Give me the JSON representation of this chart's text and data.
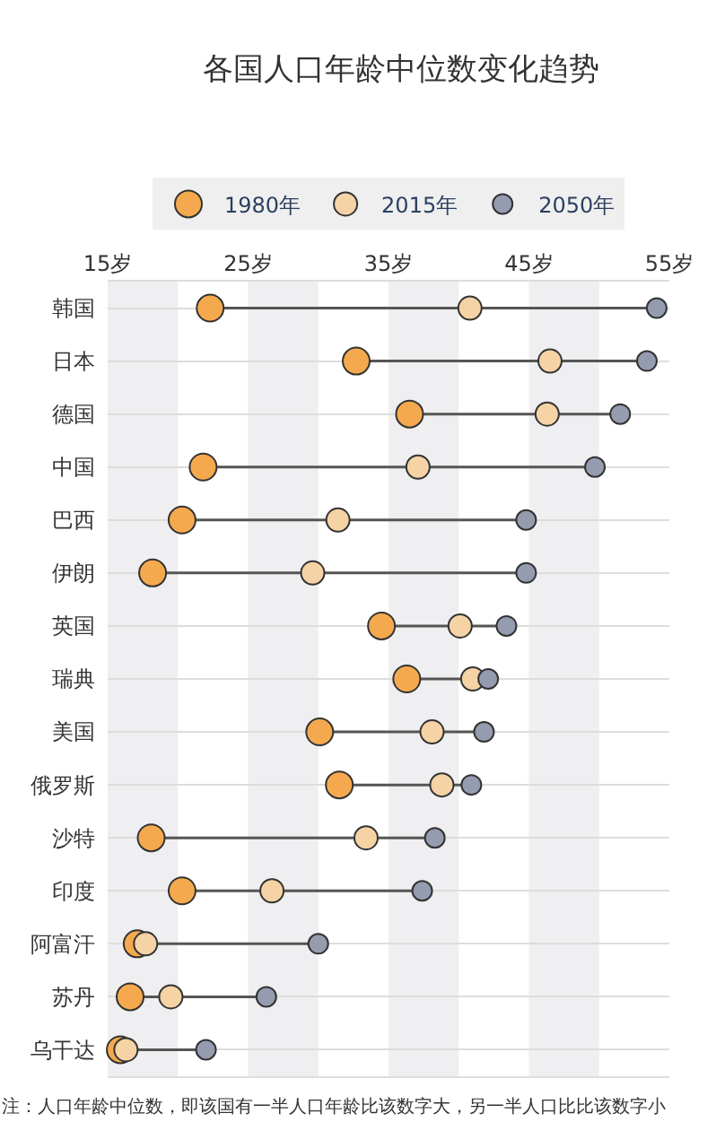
{
  "chart_data": {
    "type": "scatter",
    "title": "各国人口年龄中位数变化趋势",
    "orientation": "horizontal",
    "categories": [
      "韩国",
      "日本",
      "德国",
      "中国",
      "巴西",
      "伊朗",
      "英国",
      "瑞典",
      "美国",
      "俄罗斯",
      "沙特",
      "印度",
      "阿富汗",
      "苏丹",
      "乌干达"
    ],
    "series": [
      {
        "name": "1980年",
        "color": "#f5a94e",
        "values": [
          22.3,
          32.7,
          36.5,
          21.8,
          20.3,
          18.2,
          34.5,
          36.3,
          30.1,
          31.5,
          18.1,
          20.3,
          17.1,
          16.6,
          15.9
        ]
      },
      {
        "name": "2015年",
        "color": "#f5d3a5",
        "values": [
          40.8,
          46.5,
          46.3,
          37.1,
          31.4,
          29.6,
          40.1,
          41.0,
          38.1,
          38.8,
          33.4,
          26.7,
          17.7,
          19.5,
          16.3
        ]
      },
      {
        "name": "2050年",
        "color": "#959cb0",
        "values": [
          54.1,
          53.4,
          51.5,
          49.7,
          44.8,
          44.8,
          43.4,
          42.1,
          41.8,
          40.9,
          38.3,
          37.4,
          30.0,
          26.3,
          22.0
        ]
      }
    ],
    "xlim": [
      15,
      55
    ],
    "xticks": [
      {
        "value": 15,
        "label": "15岁"
      },
      {
        "value": 25,
        "label": "25岁"
      },
      {
        "value": 35,
        "label": "35岁"
      },
      {
        "value": 45,
        "label": "45岁"
      },
      {
        "value": 55,
        "label": "55岁"
      }
    ],
    "bands": [
      {
        "axis": "x",
        "from": 15,
        "to": 20,
        "color": "#efeef0"
      },
      {
        "axis": "x",
        "from": 25,
        "to": 30,
        "color": "#efeef0"
      },
      {
        "axis": "x",
        "from": 35,
        "to": 40,
        "color": "#efeef0"
      },
      {
        "axis": "x",
        "from": 45,
        "to": 50,
        "color": "#efeef0"
      }
    ],
    "grid": "y",
    "marker": "circle",
    "legend": "top",
    "annotations": [
      "注：人口年龄中位数，即该国有一半人口年龄比该数字大，另一半人口比比该数字小"
    ]
  }
}
